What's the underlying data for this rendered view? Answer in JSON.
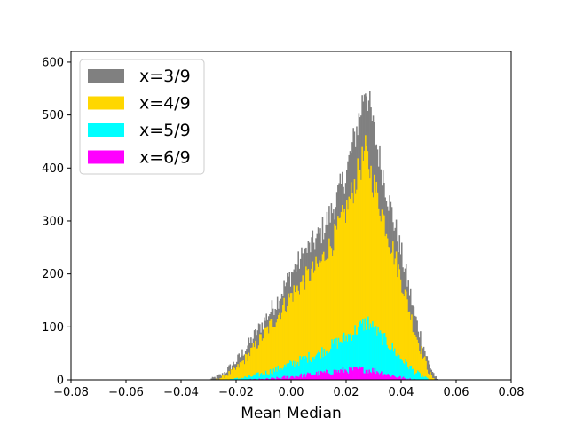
{
  "chart_data": {
    "type": "bar",
    "title": "",
    "xlabel": "Mean Median",
    "ylabel": "",
    "xlim": [
      -0.08,
      0.08
    ],
    "ylim": [
      0,
      620
    ],
    "bin_width": 0.0004,
    "xticks": [
      "−0.08",
      "−0.06",
      "−0.04",
      "−0.02",
      "0.00",
      "0.02",
      "0.04",
      "0.06",
      "0.08"
    ],
    "xtick_values": [
      -0.08,
      -0.06,
      -0.04,
      -0.02,
      0.0,
      0.02,
      0.04,
      0.06,
      0.08
    ],
    "yticks": [
      "0",
      "100",
      "200",
      "300",
      "400",
      "500",
      "600"
    ],
    "ytick_values": [
      0,
      100,
      200,
      300,
      400,
      500,
      600
    ],
    "grid": false,
    "legend_position": "top-left",
    "series": [
      {
        "name": "x=3/9",
        "color": "#808080",
        "x": [
          -0.03,
          -0.025,
          -0.02,
          -0.015,
          -0.01,
          -0.005,
          0.0,
          0.005,
          0.01,
          0.015,
          0.02,
          0.025,
          0.027,
          0.03,
          0.035,
          0.04,
          0.045,
          0.05,
          0.053
        ],
        "values": [
          0,
          10,
          35,
          70,
          110,
          150,
          200,
          240,
          270,
          320,
          390,
          500,
          560,
          470,
          350,
          240,
          120,
          30,
          0
        ]
      },
      {
        "name": "x=4/9",
        "color": "#ffd700",
        "x": [
          -0.028,
          -0.025,
          -0.02,
          -0.015,
          -0.01,
          -0.005,
          0.0,
          0.005,
          0.01,
          0.015,
          0.02,
          0.025,
          0.027,
          0.03,
          0.035,
          0.04,
          0.045,
          0.05,
          0.052
        ],
        "values": [
          0,
          5,
          20,
          50,
          85,
          120,
          160,
          190,
          215,
          260,
          320,
          400,
          430,
          370,
          280,
          190,
          90,
          15,
          0
        ]
      },
      {
        "name": "x=5/9",
        "color": "#00ffff",
        "x": [
          -0.025,
          -0.02,
          -0.015,
          -0.01,
          -0.005,
          0.0,
          0.005,
          0.01,
          0.015,
          0.02,
          0.025,
          0.028,
          0.03,
          0.035,
          0.04,
          0.045,
          0.05
        ],
        "values": [
          0,
          2,
          6,
          12,
          20,
          30,
          40,
          50,
          65,
          80,
          100,
          110,
          95,
          70,
          40,
          15,
          0
        ]
      },
      {
        "name": "x=6/9",
        "color": "#ff00ff",
        "x": [
          -0.015,
          -0.01,
          -0.005,
          0.0,
          0.005,
          0.01,
          0.015,
          0.02,
          0.025,
          0.03,
          0.035,
          0.04,
          0.045
        ],
        "values": [
          0,
          1,
          3,
          6,
          9,
          12,
          15,
          18,
          20,
          18,
          10,
          4,
          0
        ]
      }
    ]
  }
}
